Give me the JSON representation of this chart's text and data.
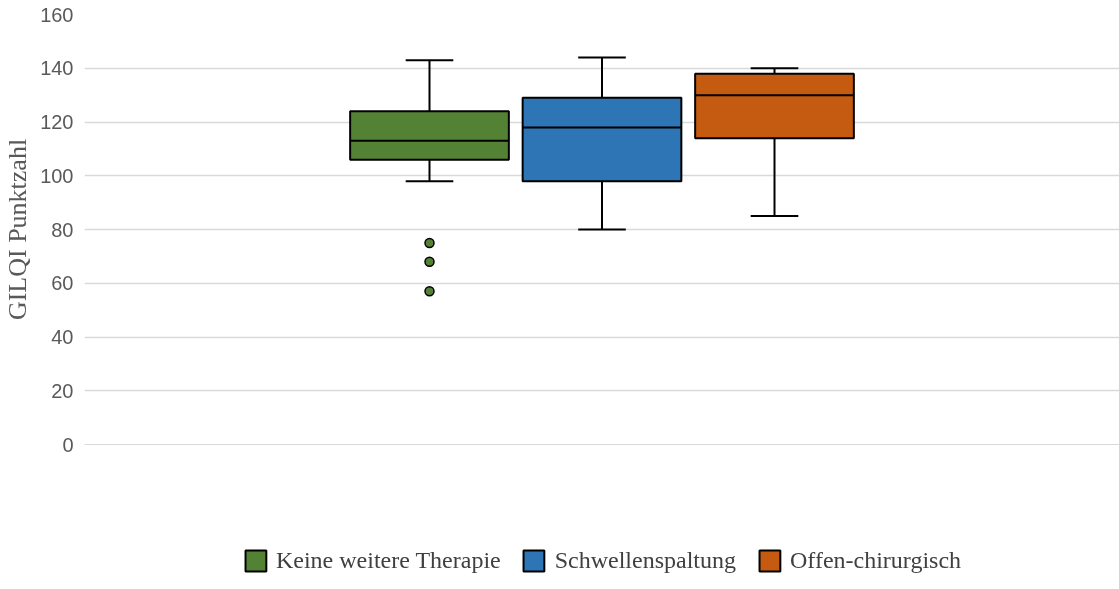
{
  "chart_data": {
    "type": "box",
    "ylabel": "GILQI Punktzahl",
    "categories": [
      null
    ],
    "series": [
      {
        "name": "Keine weitere Therapie",
        "color": "#548235",
        "boxes": [
          {
            "low": 98,
            "q1": 106,
            "median": 113,
            "q3": 124,
            "high": 143,
            "outliers": [
              75,
              68,
              57
            ]
          }
        ]
      },
      {
        "name": "Schwellenspaltung",
        "color": "#2e75b6",
        "boxes": [
          {
            "low": 80,
            "q1": 98,
            "median": 118,
            "q3": 129,
            "high": 144
          }
        ]
      },
      {
        "name": "Offen-chirurgisch",
        "color": "#c55a11",
        "boxes": [
          {
            "low": 85,
            "q1": 114,
            "median": 130,
            "q3": 138,
            "high": 140
          }
        ]
      }
    ],
    "ylim": [
      0,
      160
    ],
    "yticks": [
      0,
      20,
      40,
      60,
      80,
      100,
      120,
      140,
      160
    ],
    "grid": "y",
    "legend": "bottom",
    "tick_labels": "y"
  }
}
